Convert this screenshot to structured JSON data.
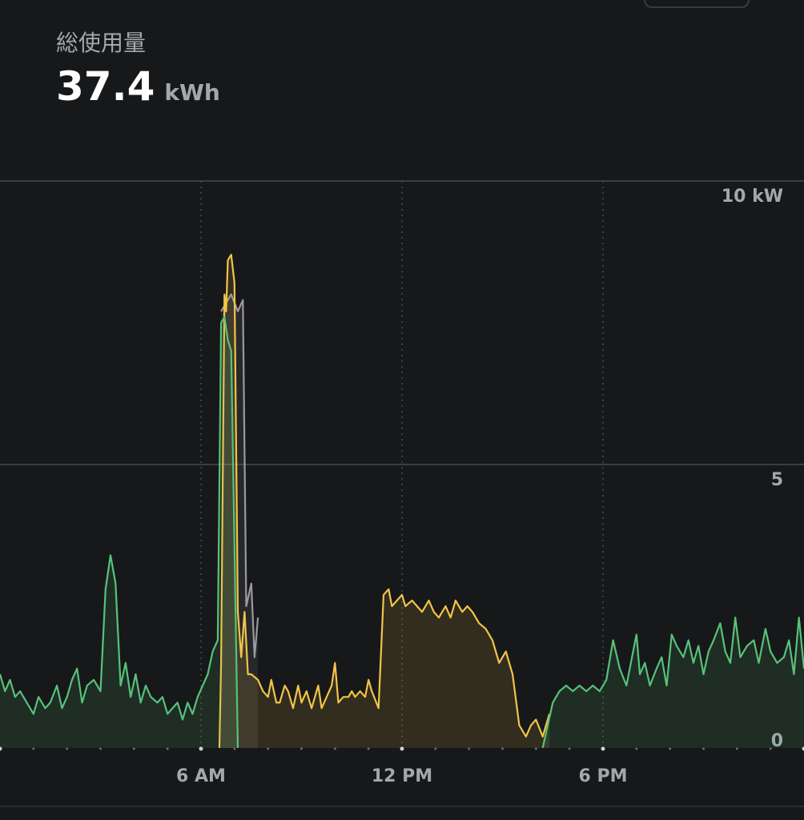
{
  "summary": {
    "label": "総使用量",
    "value": "37.4",
    "unit": "kWh"
  },
  "colors": {
    "background": "#17181a",
    "grid": "#3c3d40",
    "solar": "#f3c447",
    "grid_import": "#57c27a",
    "home": "#9a9a9e"
  },
  "chart_data": {
    "type": "area",
    "x_unit": "hour of day",
    "xlim": [
      0,
      24
    ],
    "ylim": [
      0,
      10
    ],
    "y_ticks": [
      {
        "value": 10,
        "label": "10 kW"
      },
      {
        "value": 5,
        "label": "5"
      },
      {
        "value": 0,
        "label": "0"
      }
    ],
    "x_ticks": [
      {
        "value": 6,
        "label": "6 AM"
      },
      {
        "value": 12,
        "label": "12 PM"
      },
      {
        "value": 18,
        "label": "6 PM"
      }
    ],
    "series": [
      {
        "color": "#9a9a9e",
        "points": [
          [
            6.6,
            7.7
          ],
          [
            6.9,
            8.0
          ],
          [
            7.1,
            7.7
          ],
          [
            7.25,
            7.9
          ],
          [
            7.35,
            2.5
          ],
          [
            7.5,
            2.9
          ],
          [
            7.6,
            1.6
          ],
          [
            7.7,
            2.3
          ]
        ]
      },
      {
        "color": "#f3c447",
        "points": [
          [
            6.55,
            0
          ],
          [
            6.6,
            1.5
          ],
          [
            6.7,
            8.0
          ],
          [
            6.75,
            7.7
          ],
          [
            6.8,
            8.6
          ],
          [
            6.9,
            8.7
          ],
          [
            7.0,
            8.2
          ],
          [
            7.1,
            2.4
          ],
          [
            7.2,
            1.6
          ],
          [
            7.3,
            2.4
          ],
          [
            7.4,
            1.3
          ],
          [
            7.5,
            1.3
          ],
          [
            7.7,
            1.2
          ],
          [
            7.85,
            1.0
          ],
          [
            8.0,
            0.9
          ],
          [
            8.1,
            1.2
          ],
          [
            8.25,
            0.8
          ],
          [
            8.35,
            0.8
          ],
          [
            8.5,
            1.1
          ],
          [
            8.6,
            1.0
          ],
          [
            8.75,
            0.7
          ],
          [
            8.9,
            1.1
          ],
          [
            9.0,
            0.8
          ],
          [
            9.15,
            1.0
          ],
          [
            9.3,
            0.7
          ],
          [
            9.5,
            1.1
          ],
          [
            9.6,
            0.7
          ],
          [
            9.75,
            0.9
          ],
          [
            9.9,
            1.1
          ],
          [
            10.0,
            1.5
          ],
          [
            10.1,
            0.8
          ],
          [
            10.25,
            0.9
          ],
          [
            10.4,
            0.9
          ],
          [
            10.5,
            1.0
          ],
          [
            10.6,
            0.9
          ],
          [
            10.75,
            1.0
          ],
          [
            10.9,
            0.9
          ],
          [
            11.0,
            1.2
          ],
          [
            11.1,
            1.0
          ],
          [
            11.3,
            0.7
          ],
          [
            11.45,
            2.7
          ],
          [
            11.6,
            2.8
          ],
          [
            11.7,
            2.5
          ],
          [
            11.85,
            2.6
          ],
          [
            12.0,
            2.7
          ],
          [
            12.1,
            2.5
          ],
          [
            12.3,
            2.6
          ],
          [
            12.45,
            2.5
          ],
          [
            12.6,
            2.4
          ],
          [
            12.8,
            2.6
          ],
          [
            12.95,
            2.4
          ],
          [
            13.1,
            2.3
          ],
          [
            13.3,
            2.5
          ],
          [
            13.45,
            2.3
          ],
          [
            13.6,
            2.6
          ],
          [
            13.8,
            2.4
          ],
          [
            13.95,
            2.5
          ],
          [
            14.1,
            2.4
          ],
          [
            14.3,
            2.2
          ],
          [
            14.5,
            2.1
          ],
          [
            14.7,
            1.9
          ],
          [
            14.9,
            1.5
          ],
          [
            15.1,
            1.7
          ],
          [
            15.3,
            1.3
          ],
          [
            15.5,
            0.4
          ],
          [
            15.7,
            0.2
          ],
          [
            15.85,
            0.4
          ],
          [
            16.0,
            0.5
          ],
          [
            16.2,
            0.2
          ],
          [
            16.4,
            0.6
          ]
        ]
      },
      {
        "color": "#57c27a",
        "points": [
          [
            0,
            1.3
          ],
          [
            0.15,
            1.0
          ],
          [
            0.3,
            1.2
          ],
          [
            0.45,
            0.9
          ],
          [
            0.6,
            1.0
          ],
          [
            0.8,
            0.8
          ],
          [
            1.0,
            0.6
          ],
          [
            1.15,
            0.9
          ],
          [
            1.35,
            0.7
          ],
          [
            1.5,
            0.8
          ],
          [
            1.7,
            1.1
          ],
          [
            1.85,
            0.7
          ],
          [
            2.0,
            0.9
          ],
          [
            2.15,
            1.2
          ],
          [
            2.3,
            1.4
          ],
          [
            2.45,
            0.8
          ],
          [
            2.6,
            1.1
          ],
          [
            2.8,
            1.2
          ],
          [
            3.0,
            1.0
          ],
          [
            3.15,
            2.8
          ],
          [
            3.3,
            3.4
          ],
          [
            3.45,
            2.9
          ],
          [
            3.6,
            1.1
          ],
          [
            3.75,
            1.5
          ],
          [
            3.9,
            0.9
          ],
          [
            4.05,
            1.3
          ],
          [
            4.2,
            0.8
          ],
          [
            4.35,
            1.1
          ],
          [
            4.5,
            0.9
          ],
          [
            4.7,
            0.8
          ],
          [
            4.85,
            0.9
          ],
          [
            5.0,
            0.6
          ],
          [
            5.15,
            0.7
          ],
          [
            5.3,
            0.8
          ],
          [
            5.45,
            0.5
          ],
          [
            5.6,
            0.8
          ],
          [
            5.75,
            0.6
          ],
          [
            5.9,
            0.9
          ],
          [
            6.05,
            1.1
          ],
          [
            6.2,
            1.3
          ],
          [
            6.35,
            1.7
          ],
          [
            6.5,
            1.9
          ],
          [
            6.6,
            7.5
          ],
          [
            6.7,
            7.6
          ],
          [
            6.8,
            7.2
          ],
          [
            6.9,
            7.0
          ],
          [
            7.1,
            0
          ],
          [
            16.2,
            0
          ],
          [
            16.35,
            0.4
          ],
          [
            16.5,
            0.8
          ],
          [
            16.7,
            1.0
          ],
          [
            16.9,
            1.1
          ],
          [
            17.1,
            1.0
          ],
          [
            17.3,
            1.1
          ],
          [
            17.5,
            1.0
          ],
          [
            17.7,
            1.1
          ],
          [
            17.9,
            1.0
          ],
          [
            18.1,
            1.2
          ],
          [
            18.3,
            1.9
          ],
          [
            18.5,
            1.4
          ],
          [
            18.7,
            1.1
          ],
          [
            18.9,
            1.7
          ],
          [
            19.0,
            2.0
          ],
          [
            19.1,
            1.3
          ],
          [
            19.25,
            1.5
          ],
          [
            19.4,
            1.1
          ],
          [
            19.6,
            1.4
          ],
          [
            19.75,
            1.6
          ],
          [
            19.9,
            1.1
          ],
          [
            20.05,
            2.0
          ],
          [
            20.2,
            1.8
          ],
          [
            20.4,
            1.6
          ],
          [
            20.55,
            1.9
          ],
          [
            20.7,
            1.5
          ],
          [
            20.85,
            1.8
          ],
          [
            21.0,
            1.3
          ],
          [
            21.15,
            1.7
          ],
          [
            21.3,
            1.9
          ],
          [
            21.5,
            2.2
          ],
          [
            21.65,
            1.7
          ],
          [
            21.8,
            1.5
          ],
          [
            21.95,
            2.3
          ],
          [
            22.1,
            1.6
          ],
          [
            22.3,
            1.8
          ],
          [
            22.5,
            1.9
          ],
          [
            22.65,
            1.5
          ],
          [
            22.85,
            2.1
          ],
          [
            23.0,
            1.7
          ],
          [
            23.2,
            1.5
          ],
          [
            23.4,
            1.6
          ],
          [
            23.55,
            1.9
          ],
          [
            23.7,
            1.3
          ],
          [
            23.85,
            2.3
          ],
          [
            24.0,
            1.4
          ]
        ]
      }
    ]
  }
}
